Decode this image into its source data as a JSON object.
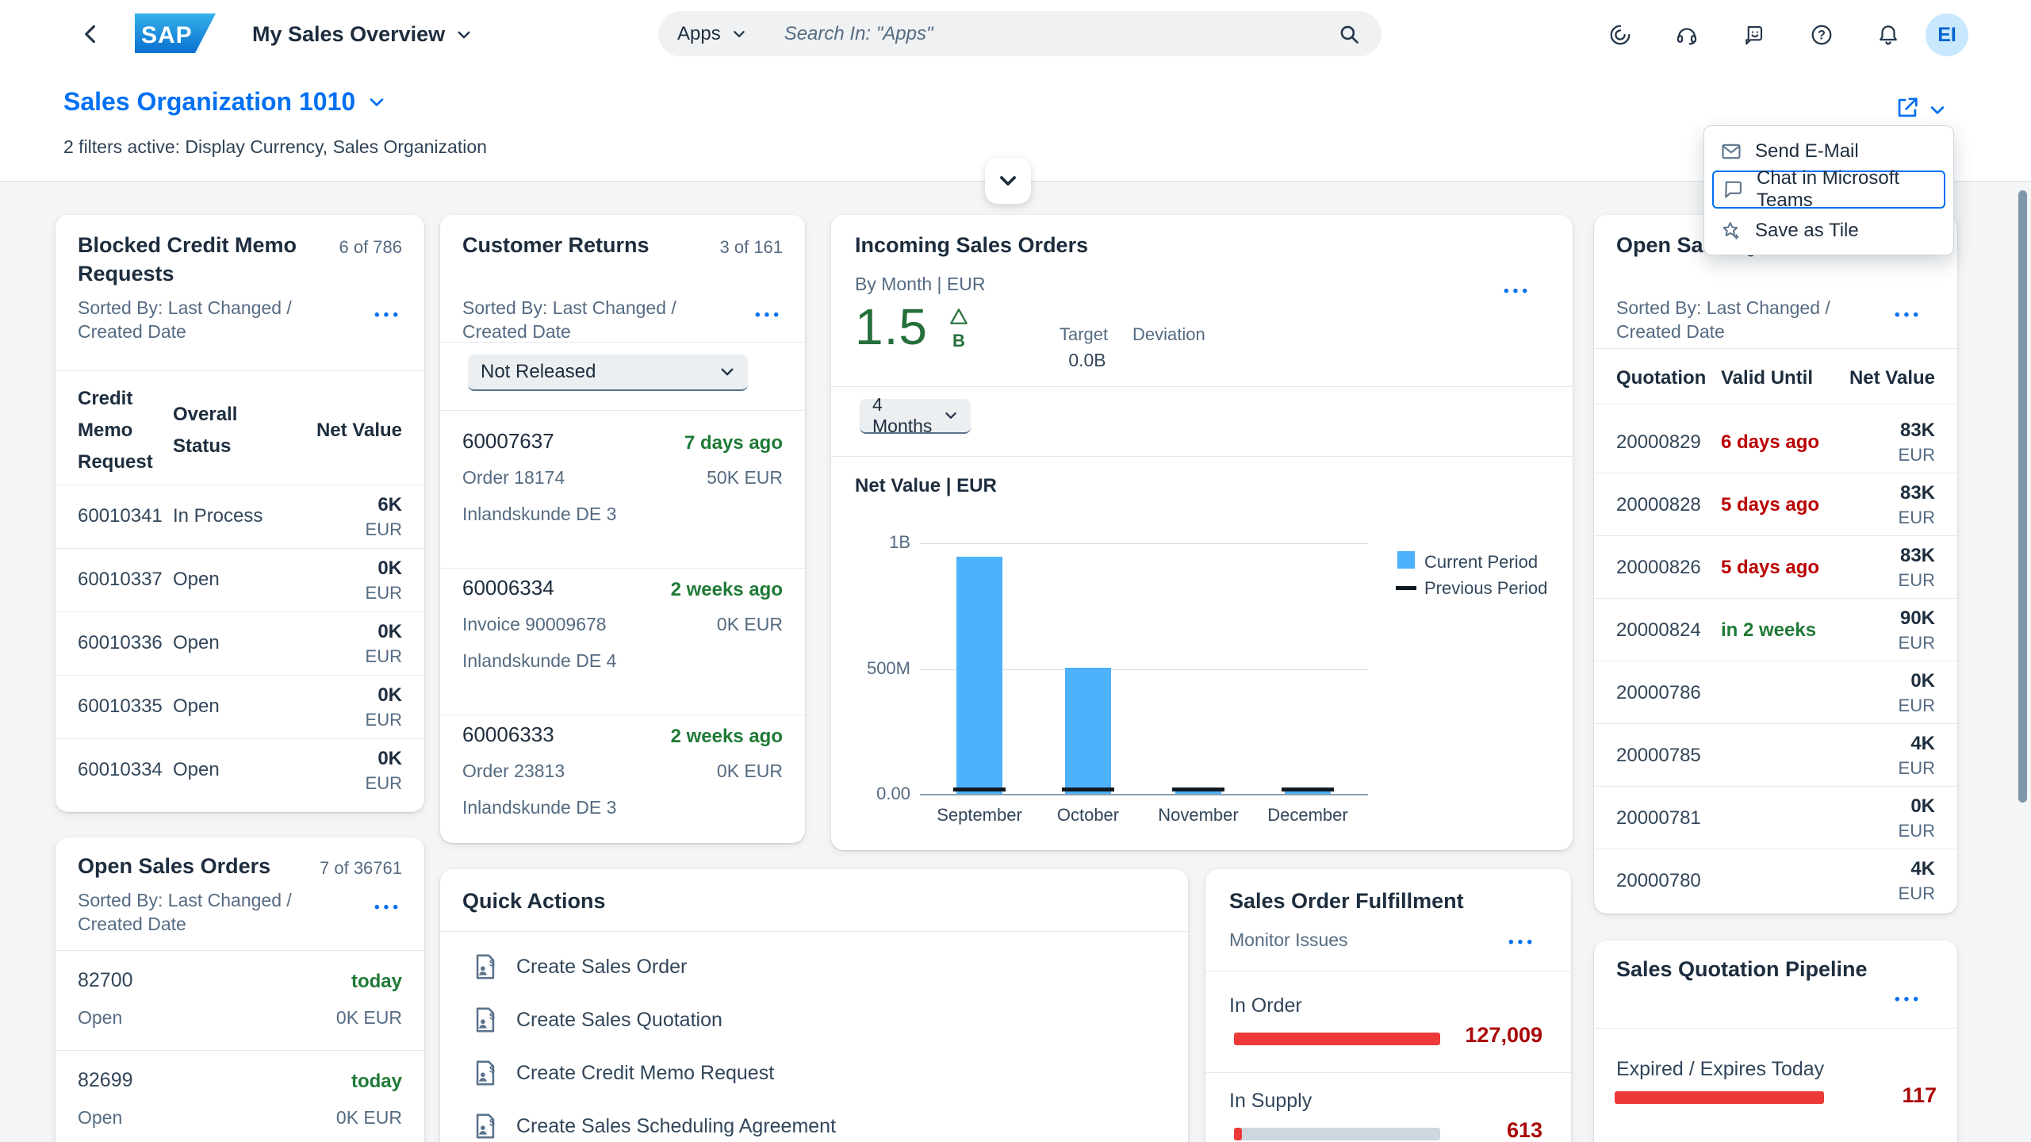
{
  "shell": {
    "product": "SAP",
    "page_title": "My Sales Overview",
    "search_scope": "Apps",
    "search_placeholder": "Search In: \"Apps\"",
    "avatar": "EI",
    "icons": [
      "ai-assistant-icon",
      "headset-icon",
      "feedback-icon",
      "help-icon",
      "bell-icon"
    ]
  },
  "header": {
    "title": "Sales Organization 1010",
    "filters": "2 filters active: Display Currency, Sales Organization"
  },
  "menu": {
    "items": [
      {
        "label": "Send E-Mail",
        "icon": "email-icon"
      },
      {
        "label": "Chat in Microsoft Teams",
        "icon": "chat-icon"
      },
      {
        "label": "Save as Tile",
        "icon": "save-as-tile-icon"
      }
    ]
  },
  "cards": {
    "blocked": {
      "title": "Blocked Credit Memo Requests",
      "count": "6 of 786",
      "sorted_by": "Sorted By: Last Changed / Created Date",
      "col_request": "Credit Memo Request",
      "col_status": "Overall Status",
      "col_value": "Net Value",
      "rows": [
        {
          "id": "60010341",
          "status": "In Process",
          "value": "6K",
          "currency": "EUR"
        },
        {
          "id": "60010337",
          "status": "Open",
          "value": "0K",
          "currency": "EUR"
        },
        {
          "id": "60010336",
          "status": "Open",
          "value": "0K",
          "currency": "EUR"
        },
        {
          "id": "60010335",
          "status": "Open",
          "value": "0K",
          "currency": "EUR"
        },
        {
          "id": "60010334",
          "status": "Open",
          "value": "0K",
          "currency": "EUR"
        }
      ]
    },
    "returns": {
      "title": "Customer Returns",
      "count": "3 of 161",
      "sorted_by": "Sorted By: Last Changed / Created Date",
      "filter": "Not Released",
      "rows": [
        {
          "id": "60007637",
          "age": "7 days ago",
          "ref": "Order 18174",
          "value": "50K EUR",
          "customer": "Inlandskunde DE 3"
        },
        {
          "id": "60006334",
          "age": "2 weeks ago",
          "ref": "Invoice 90009678",
          "value": "0K EUR",
          "customer": "Inlandskunde DE 4"
        },
        {
          "id": "60006333",
          "age": "2 weeks ago",
          "ref": "Order 23813",
          "value": "0K EUR",
          "customer": "Inlandskunde DE 3"
        }
      ]
    },
    "incoming": {
      "title": "Incoming Sales Orders",
      "subtitle": "By Month | EUR",
      "kpi": "1.5",
      "kpi_unit": "B",
      "target_label": "Target",
      "target_value": "0.0B",
      "deviation_label": "Deviation",
      "period": "4 Months"
    },
    "quotations": {
      "title": "Open Sales Quotations",
      "sorted_by": "Sorted By: Last Changed / Created Date",
      "col_id": "Quotation",
      "col_valid": "Valid Until",
      "col_value": "Net Value",
      "rows": [
        {
          "id": "20000829",
          "valid": "6 days ago",
          "tone": "neg",
          "value": "83K",
          "currency": "EUR"
        },
        {
          "id": "20000828",
          "valid": "5 days ago",
          "tone": "neg",
          "value": "83K",
          "currency": "EUR"
        },
        {
          "id": "20000826",
          "valid": "5 days ago",
          "tone": "neg",
          "value": "83K",
          "currency": "EUR"
        },
        {
          "id": "20000824",
          "valid": "in 2 weeks",
          "tone": "pos",
          "value": "90K",
          "currency": "EUR"
        },
        {
          "id": "20000786",
          "valid": "",
          "tone": "",
          "value": "0K",
          "currency": "EUR"
        },
        {
          "id": "20000785",
          "valid": "",
          "tone": "",
          "value": "4K",
          "currency": "EUR"
        },
        {
          "id": "20000781",
          "valid": "",
          "tone": "",
          "value": "0K",
          "currency": "EUR"
        },
        {
          "id": "20000780",
          "valid": "",
          "tone": "",
          "value": "4K",
          "currency": "EUR"
        }
      ]
    },
    "open_orders": {
      "title": "Open Sales Orders",
      "count": "7 of 36761",
      "sorted_by": "Sorted By: Last Changed / Created Date",
      "rows": [
        {
          "id": "82700",
          "due": "today",
          "status": "Open",
          "value": "0K EUR"
        },
        {
          "id": "82699",
          "due": "today",
          "status": "Open",
          "value": "0K EUR"
        }
      ]
    },
    "quick_actions": {
      "title": "Quick Actions",
      "items": [
        {
          "label": "Create Sales Order"
        },
        {
          "label": "Create Sales Quotation"
        },
        {
          "label": "Create Credit Memo Request"
        },
        {
          "label": "Create Sales Scheduling Agreement"
        }
      ]
    },
    "fulfillment": {
      "title": "Sales Order Fulfillment",
      "subtitle": "Monitor Issues",
      "items": [
        {
          "label": "In Order",
          "value": "127,009",
          "percent": 100
        },
        {
          "label": "In Supply",
          "value": "613",
          "percent": 4
        }
      ]
    },
    "pipeline": {
      "title": "Sales Quotation Pipeline",
      "items": [
        {
          "label": "Expired / Expires Today",
          "value": "117",
          "percent": 100
        }
      ]
    }
  },
  "chart_data": {
    "type": "bar",
    "title": "Net Value | EUR",
    "categories": [
      "September",
      "October",
      "November",
      "December"
    ],
    "series": [
      {
        "name": "Current Period",
        "values": [
          940,
          500,
          25,
          10
        ],
        "color": "#4db1fc"
      },
      {
        "name": "Previous Period",
        "values": [
          15,
          15,
          15,
          15
        ],
        "color": "#101820",
        "style": "dash"
      }
    ],
    "unit": "M EUR",
    "ylim": [
      0,
      1000
    ],
    "yticks": [
      "1B",
      "500M",
      "0.00"
    ],
    "grid": true,
    "legend_position": "right"
  },
  "colors": {
    "accent_blue": "#0070f2",
    "title_navy": "#1d2d3e",
    "subtitle_gray": "#556b82",
    "positive_green": "#1f7a37",
    "negative_red": "#bb0000",
    "value_red": "#aa0808",
    "bar_red": "#ee3939",
    "chart_blue": "#4db1fc"
  }
}
